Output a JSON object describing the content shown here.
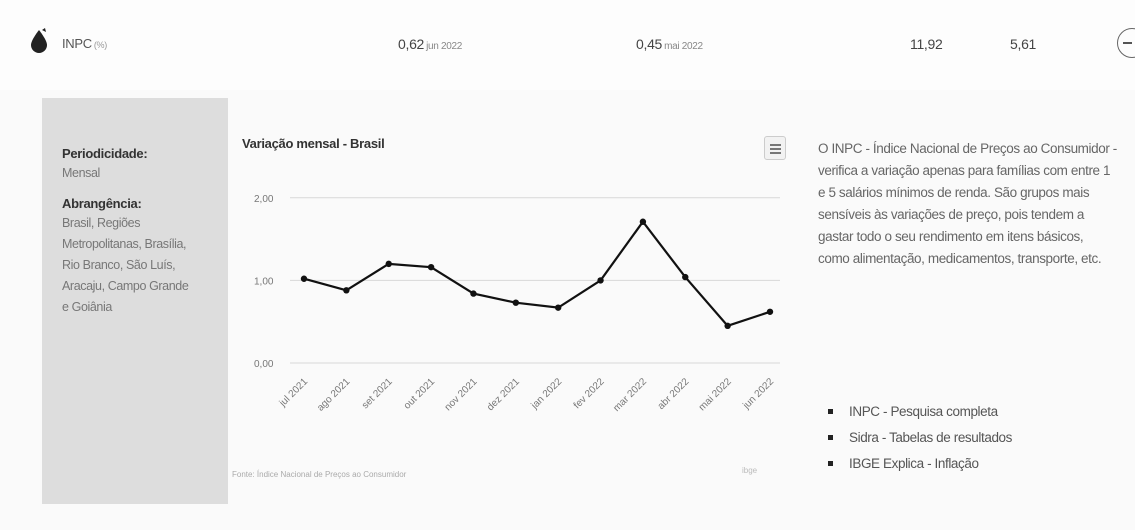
{
  "header": {
    "indicator_name": "INPC",
    "indicator_unit": "(%)",
    "value1": "0,62",
    "value1_date": "jun 2022",
    "value2": "0,45",
    "value2_date": "mai 2022",
    "value3": "11,92",
    "value4": "5,61",
    "icons": [
      "drop-icon",
      "collapse-icon"
    ]
  },
  "sidebar": {
    "periodicity_label": "Periodicidade:",
    "periodicity_value": "Mensal",
    "coverage_label": "Abrangência:",
    "coverage_lines": [
      "Brasil, Regiões",
      "Metropolitanas, Brasília,",
      "Rio Branco, São Luís,",
      "Aracaju, Campo Grande",
      "e Goiânia"
    ]
  },
  "chart": {
    "menu_icon": "hamburger-icon",
    "source": "Fonte: Índice Nacional de Preços ao Consumidor",
    "credits": "ibge"
  },
  "chart_data": {
    "type": "line",
    "title": "Variação mensal - Brasil",
    "categories": [
      "jul 2021",
      "ago 2021",
      "set 2021",
      "out 2021",
      "nov 2021",
      "dez 2021",
      "jan 2022",
      "fev 2022",
      "mar 2022",
      "abr 2022",
      "mai 2022",
      "jun 2022"
    ],
    "values": [
      1.02,
      0.88,
      1.2,
      1.16,
      0.84,
      0.73,
      0.67,
      1.0,
      1.71,
      1.04,
      0.45,
      0.62
    ],
    "y_ticks": [
      "0,00",
      "1,00",
      "2,00"
    ],
    "ylim": [
      0,
      2.3
    ],
    "grid": true,
    "color": "#111111"
  },
  "description": "O INPC - Índice Nacional de Preços ao Consumidor - verifica a variação apenas para famílias com entre 1 e 5 salários mínimos de renda. São grupos mais sensíveis às variações de preço, pois tendem a gastar todo o seu rendimento em itens básicos, como alimentação, medicamentos, transporte, etc.",
  "links": [
    {
      "label": "INPC - Pesquisa completa"
    },
    {
      "label": "Sidra - Tabelas de resultados"
    },
    {
      "label": "IBGE Explica - Inflação"
    }
  ]
}
